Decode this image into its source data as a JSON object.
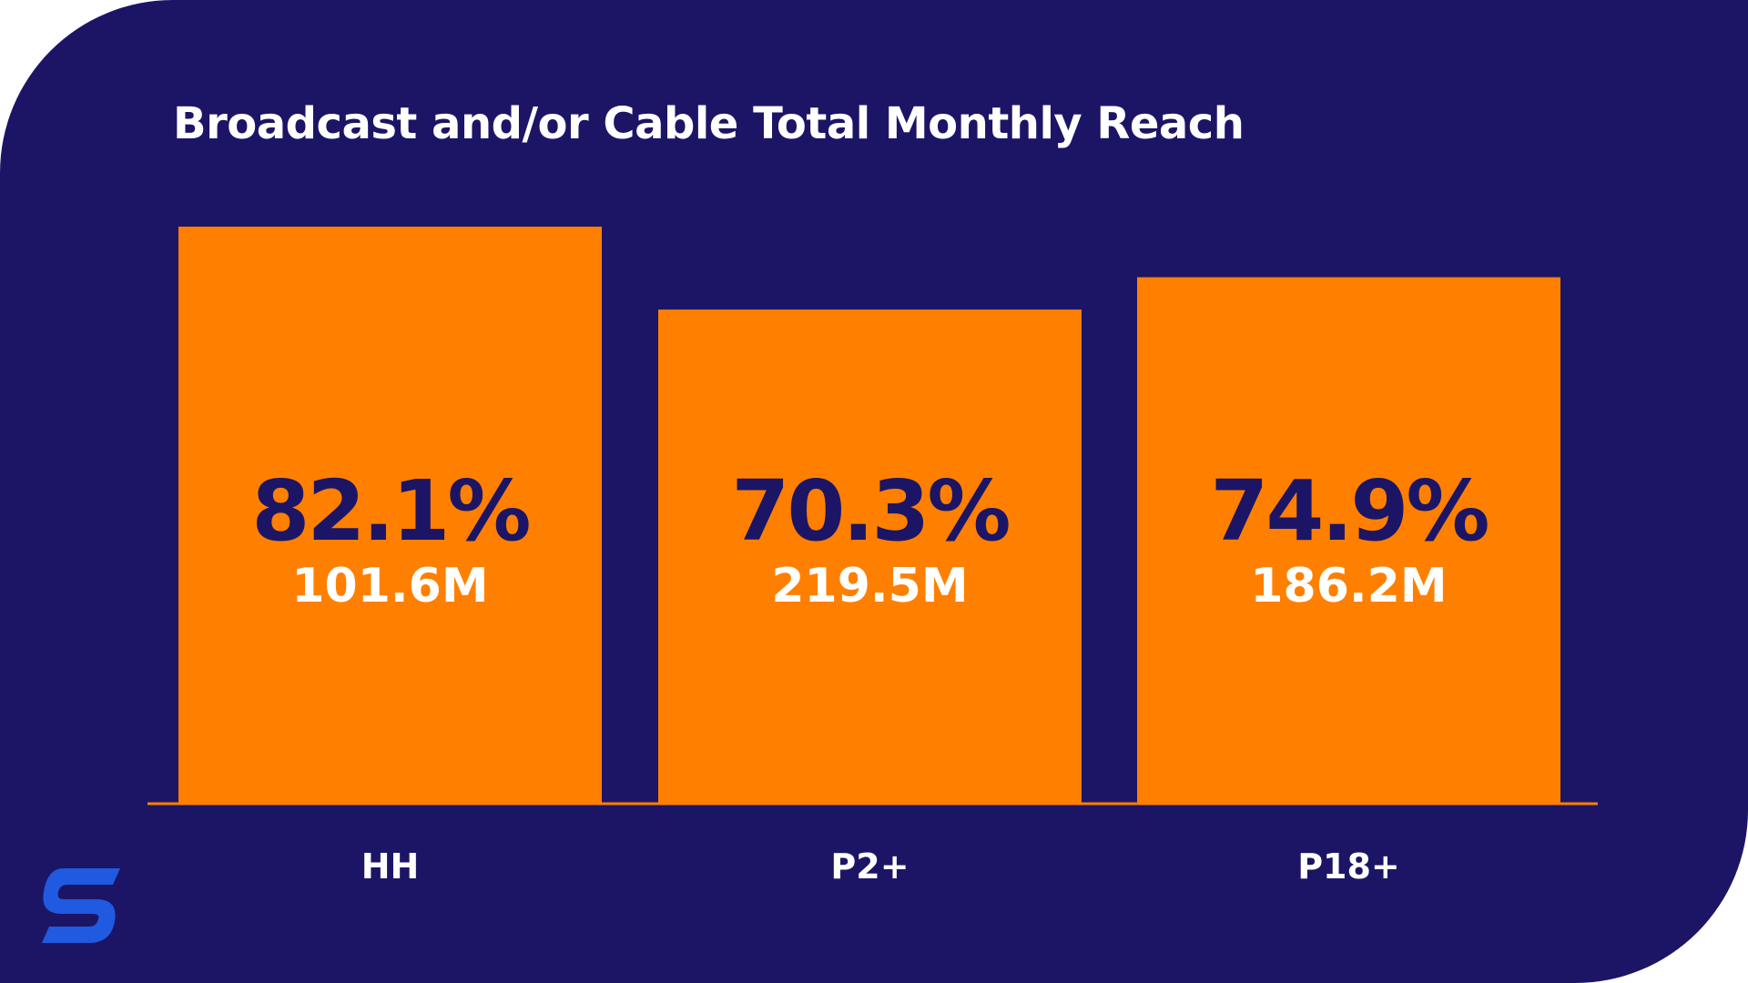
{
  "colors": {
    "background": "#1c1566",
    "bar": "#ff8000",
    "value_text": "#1c1566",
    "label_text": "#ffffff",
    "logo": "#1f5ae0"
  },
  "logo_icon": "brand-s-logo-icon",
  "chart_data": {
    "type": "bar",
    "title": "Broadcast and/or Cable Total Monthly Reach",
    "categories": [
      "HH",
      "P2+",
      "P18+"
    ],
    "values": [
      82.1,
      70.3,
      74.9
    ],
    "value_labels": [
      "82.1%",
      "70.3%",
      "74.9%"
    ],
    "sub_labels": [
      "101.6M",
      "219.5M",
      "186.2M"
    ],
    "ylim": [
      0,
      82.1
    ],
    "grid": false,
    "legend": "none"
  }
}
